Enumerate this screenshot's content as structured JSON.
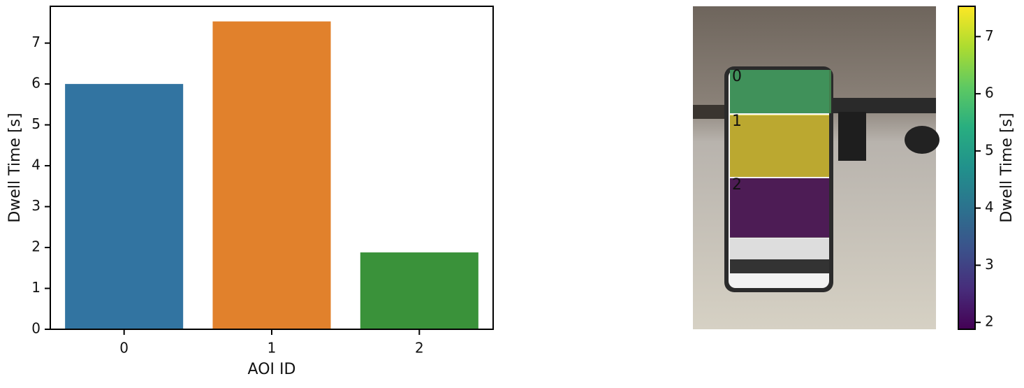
{
  "chart_data": [
    {
      "type": "bar",
      "xlabel": "AOI ID",
      "ylabel": "Dwell Time [s]",
      "categories": [
        "0",
        "1",
        "2"
      ],
      "values": [
        6.0,
        7.53,
        1.88
      ],
      "colors": [
        "#3274a1",
        "#e1812c",
        "#3a923a"
      ],
      "ylim": [
        0,
        7.9
      ],
      "yticks": [
        0,
        1,
        2,
        3,
        4,
        5,
        6,
        7
      ]
    },
    {
      "type": "colorbar",
      "label": "Dwell Time [s]",
      "colormap": "viridis",
      "clim": [
        1.88,
        7.53
      ],
      "ticks": [
        2,
        3,
        4,
        5,
        6,
        7
      ]
    }
  ]
}
